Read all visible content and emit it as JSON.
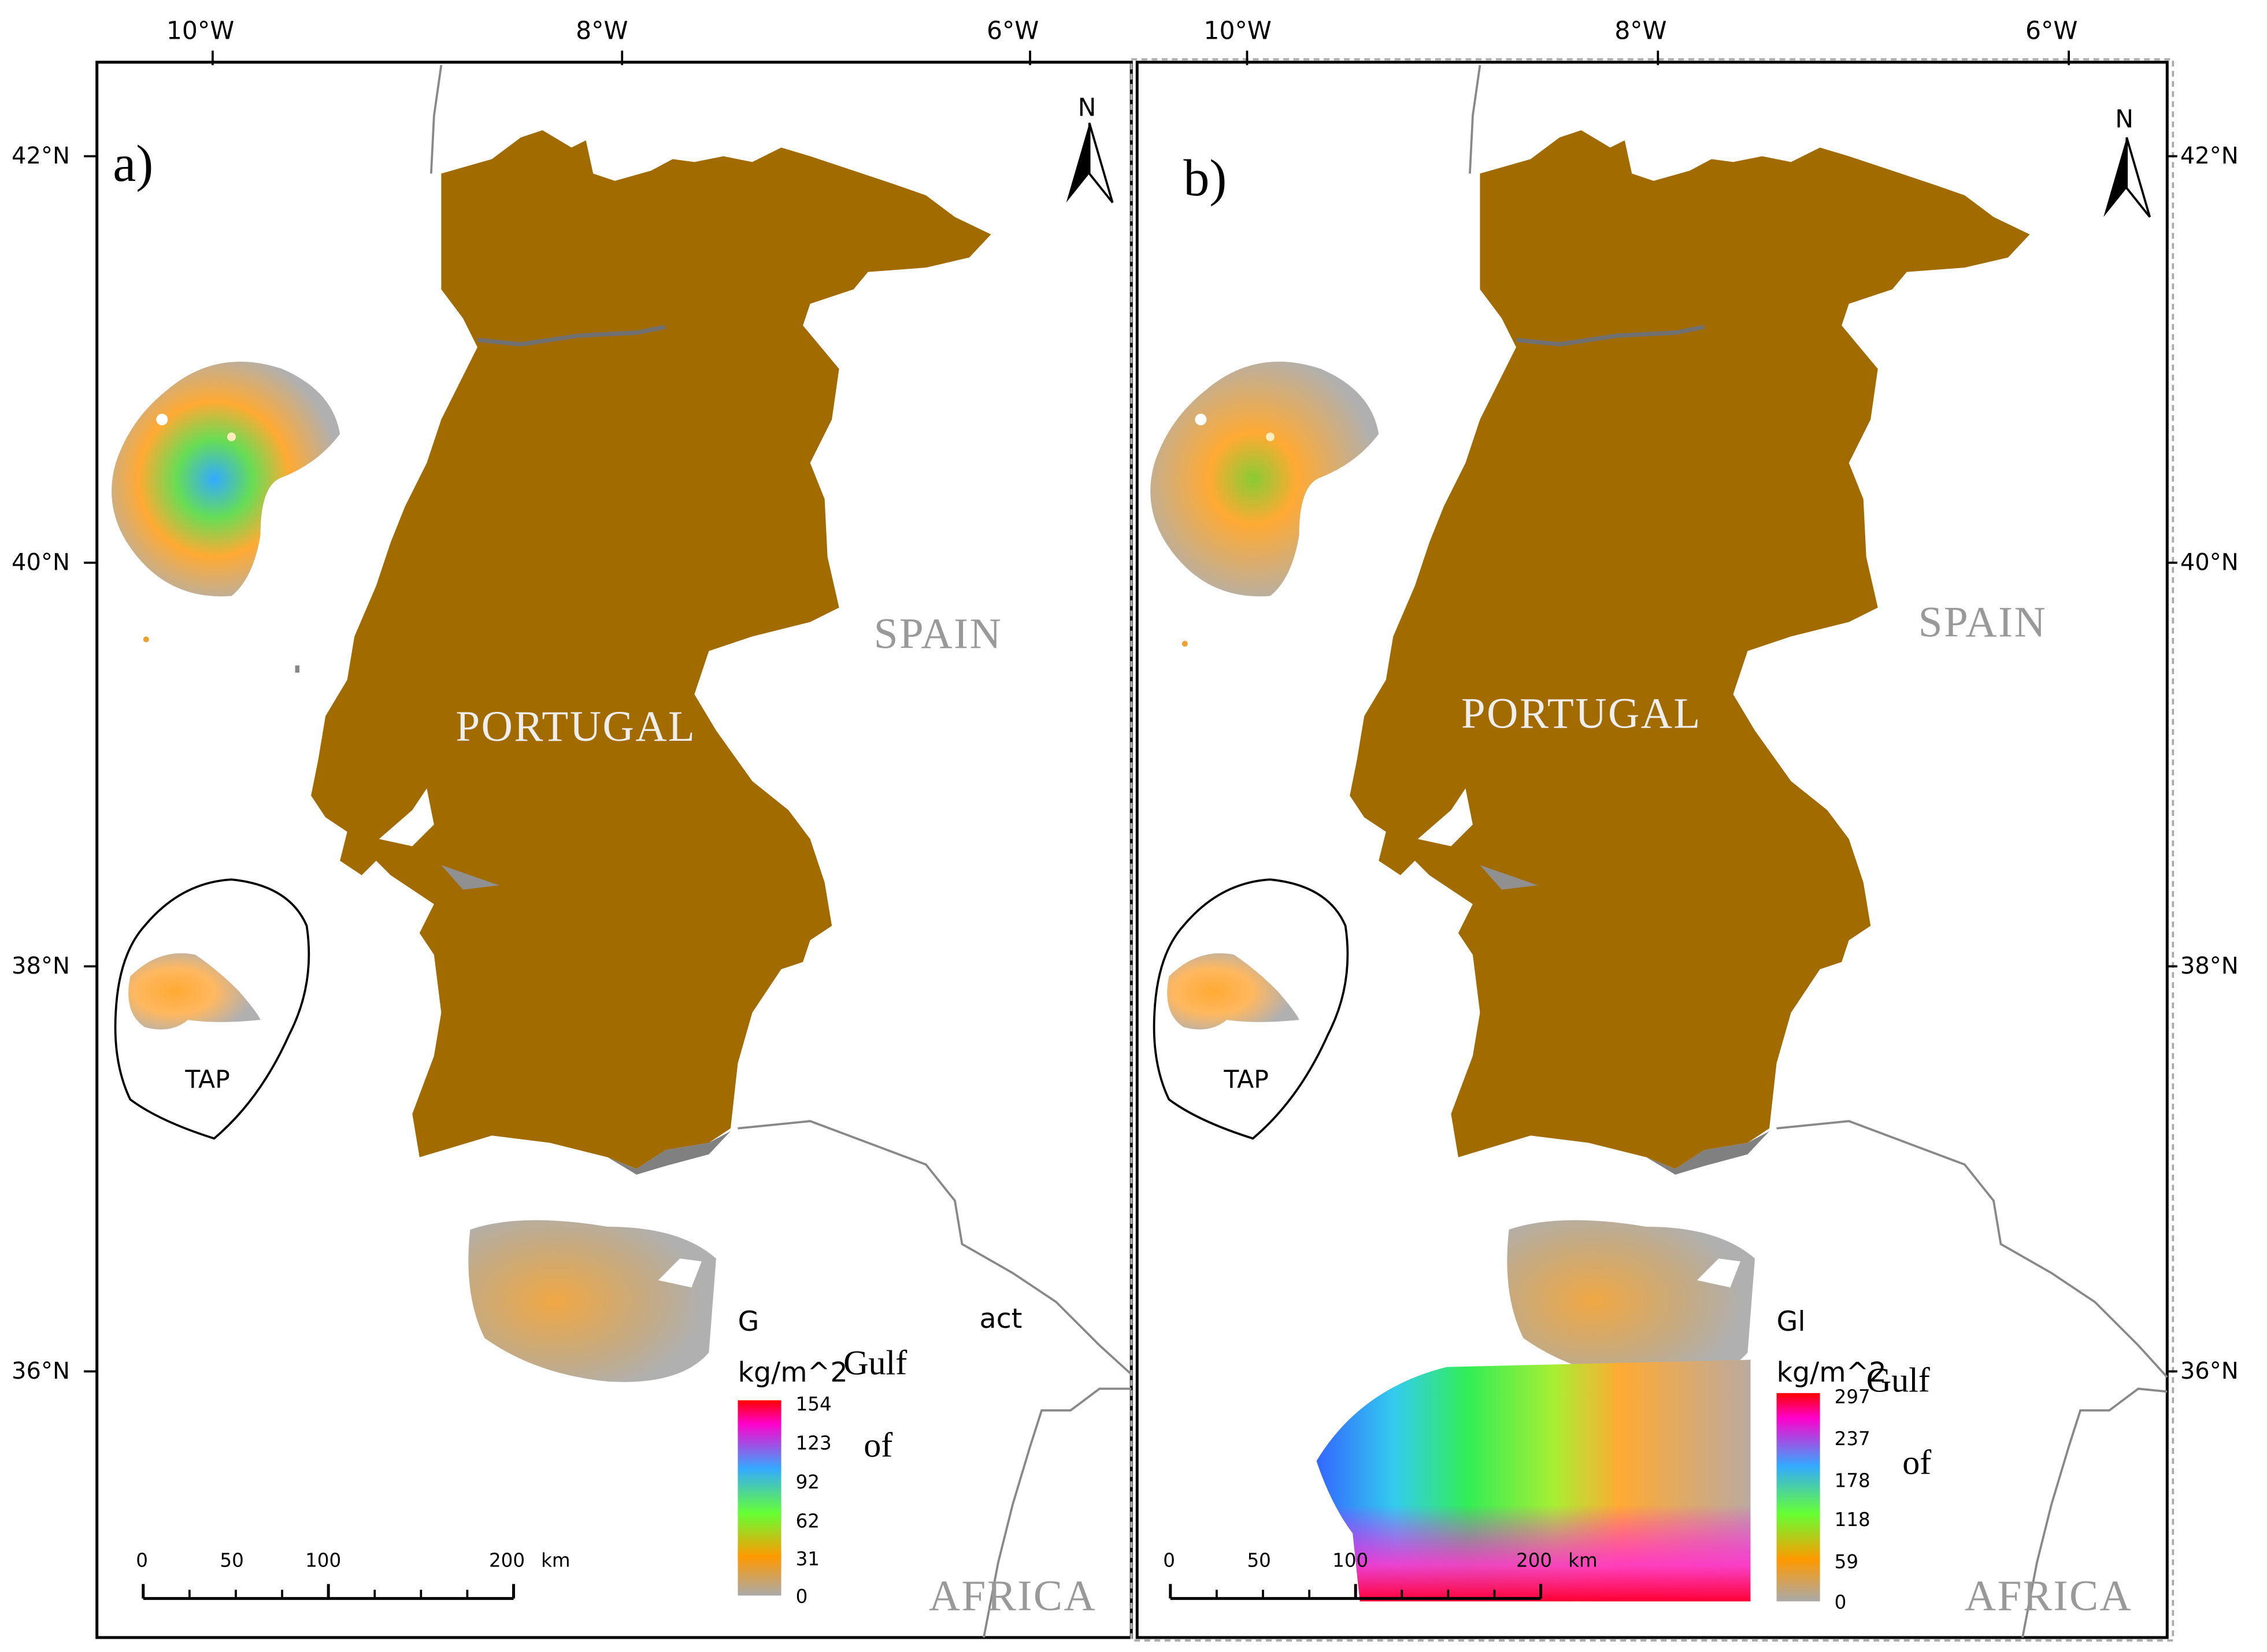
{
  "panels": [
    {
      "id": "a",
      "panel_label": "a)",
      "lon_labels": [
        "10°W",
        "8°W",
        "6°W"
      ],
      "lat_labels": [
        "42°N",
        "40°N",
        "38°N",
        "36°N"
      ],
      "north_label": "N",
      "country_label": "PORTUGAL",
      "spain_label": "SPAIN",
      "africa_label": "AFRICA",
      "tap_label": "TAP",
      "legend": {
        "title_partial": "G",
        "title_tail": "act",
        "unit": "kg/m^2",
        "ticks": [
          "154",
          "123",
          "92",
          "62",
          "31",
          "0"
        ]
      },
      "overlay_text": [
        "Gulf",
        "of"
      ],
      "scale_bar": {
        "ticks": [
          "0",
          "50",
          "100",
          "200"
        ],
        "unit": "km"
      }
    },
    {
      "id": "b",
      "panel_label": "b)",
      "lon_labels": [
        "10°W",
        "8°W",
        "6°W"
      ],
      "lat_labels": [
        "42°N",
        "40°N",
        "38°N",
        "36°N"
      ],
      "north_label": "N",
      "country_label": "PORTUGAL",
      "spain_label": "SPAIN",
      "africa_label": "AFRICA",
      "tap_label": "TAP",
      "legend": {
        "title_partial": "Gl",
        "title_tail": "",
        "unit": "kg/m^2",
        "ticks": [
          "297",
          "237",
          "178",
          "118",
          "59",
          "0"
        ]
      },
      "overlay_text": [
        "Gulf",
        "of"
      ],
      "scale_bar": {
        "ticks": [
          "0",
          "50",
          "100",
          "200"
        ],
        "unit": "km"
      }
    }
  ],
  "colors": {
    "land": "#A26B00",
    "grey_plume": "#B0B0B0",
    "coast_line": "#7a7a7a",
    "frame": "#000000"
  }
}
